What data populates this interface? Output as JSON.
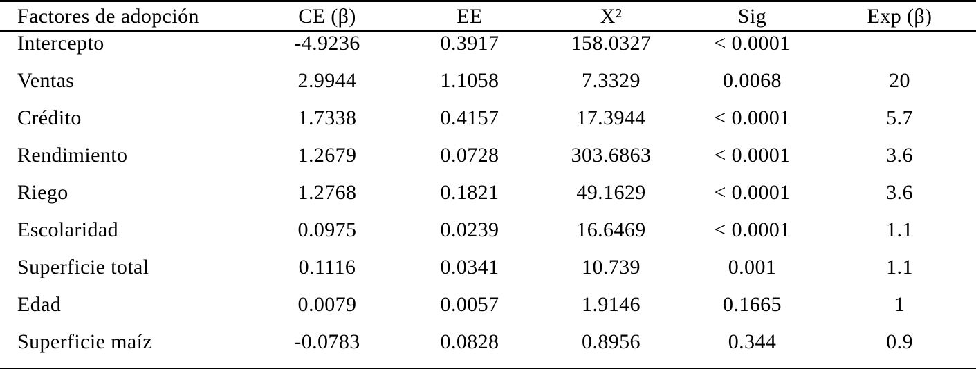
{
  "table": {
    "header": {
      "factor": "Factores de adopción",
      "ce": "CE (β)",
      "ee": "EE",
      "x2": "X²",
      "sig": "Sig",
      "exp": "Exp (β)"
    },
    "rows": [
      {
        "factor": "Intercepto",
        "ce": "-4.9236",
        "ee": "0.3917",
        "x2": "158.0327",
        "sig": "< 0.0001",
        "exp": ""
      },
      {
        "factor": "Ventas",
        "ce": "2.9944",
        "ee": "1.1058",
        "x2": "7.3329",
        "sig": "0.0068",
        "exp": "20"
      },
      {
        "factor": "Crédito",
        "ce": "1.7338",
        "ee": "0.4157",
        "x2": "17.3944",
        "sig": "< 0.0001",
        "exp": "5.7"
      },
      {
        "factor": "Rendimiento",
        "ce": "1.2679",
        "ee": "0.0728",
        "x2": "303.6863",
        "sig": "< 0.0001",
        "exp": "3.6"
      },
      {
        "factor": "Riego",
        "ce": "1.2768",
        "ee": "0.1821",
        "x2": "49.1629",
        "sig": "< 0.0001",
        "exp": "3.6"
      },
      {
        "factor": "Escolaridad",
        "ce": "0.0975",
        "ee": "0.0239",
        "x2": "16.6469",
        "sig": "< 0.0001",
        "exp": "1.1"
      },
      {
        "factor": "Superficie total",
        "ce": "0.1116",
        "ee": "0.0341",
        "x2": "10.739",
        "sig": "0.001",
        "exp": "1.1"
      },
      {
        "factor": "Edad",
        "ce": "0.0079",
        "ee": "0.0057",
        "x2": "1.9146",
        "sig": "0.1665",
        "exp": "1"
      },
      {
        "factor": "Superficie maíz",
        "ce": "-0.0783",
        "ee": "0.0828",
        "x2": "0.8956",
        "sig": "0.344",
        "exp": "0.9"
      }
    ],
    "colors": {
      "background": "#ffffff",
      "text": "#000000",
      "rule": "#000000"
    }
  }
}
